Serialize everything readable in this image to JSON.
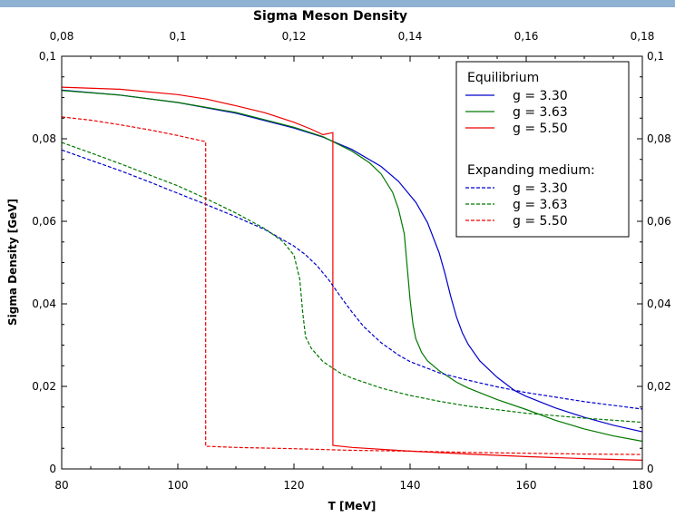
{
  "chart_data": {
    "type": "line",
    "title": "Sigma Meson Density",
    "xlabel": "T [MeV]",
    "ylabel": "Sigma Density [GeV]",
    "xlim": [
      80,
      180
    ],
    "ylim": [
      0,
      0.1
    ],
    "top_xlim": [
      0.08,
      0.18
    ],
    "x_ticks": [
      "80",
      "100",
      "120",
      "140",
      "160",
      "180"
    ],
    "top_ticks": [
      "0,08",
      "0,1",
      "0,12",
      "0,14",
      "0,16",
      "0,18"
    ],
    "y_ticks_left": [
      "0",
      "0,02",
      "0,04",
      "0,06",
      "0,08",
      "0,1"
    ],
    "y_ticks_right": [
      "0",
      "0,02",
      "0,04",
      "0,06",
      "0,08",
      "0,1"
    ],
    "legend": {
      "placement": "top-right",
      "group1": "Equilibrium",
      "group2": "Expanding medium:"
    },
    "series": [
      {
        "name": "g = 3.30",
        "group": "Equilibrium",
        "color": "#0000cc",
        "dash": false,
        "x": [
          80,
          90,
          100,
          110,
          120,
          125,
          130,
          135,
          138,
          141,
          143,
          145,
          146,
          147,
          148,
          149,
          150,
          152,
          155,
          158,
          160,
          165,
          170,
          175,
          180
        ],
        "y": [
          0.0918,
          0.0906,
          0.0888,
          0.0862,
          0.0826,
          0.0804,
          0.0774,
          0.0733,
          0.0697,
          0.0646,
          0.0597,
          0.0524,
          0.0474,
          0.0418,
          0.0368,
          0.033,
          0.0302,
          0.0262,
          0.0222,
          0.019,
          0.0176,
          0.0148,
          0.0125,
          0.0106,
          0.009
        ]
      },
      {
        "name": "g = 3.63",
        "group": "Equilibrium",
        "color": "#007700",
        "dash": false,
        "x": [
          80,
          90,
          100,
          110,
          120,
          125,
          130,
          133,
          135,
          137,
          138,
          139,
          139.5,
          140,
          140.5,
          141,
          142,
          143,
          145,
          148,
          150,
          155,
          160,
          165,
          170,
          175,
          180
        ],
        "y": [
          0.0917,
          0.0906,
          0.0888,
          0.0864,
          0.0828,
          0.0805,
          0.077,
          0.0742,
          0.0715,
          0.067,
          0.063,
          0.057,
          0.049,
          0.041,
          0.035,
          0.0315,
          0.0282,
          0.0262,
          0.0238,
          0.021,
          0.0196,
          0.0168,
          0.0144,
          0.0118,
          0.0097,
          0.008,
          0.0067
        ]
      },
      {
        "name": "g = 5.50",
        "group": "Equilibrium",
        "color": "#ee0000",
        "dash": false,
        "x": [
          80,
          90,
          100,
          105,
          110,
          115,
          120,
          123,
          125,
          126.7,
          126.7,
          130,
          140,
          150,
          160,
          170,
          180
        ],
        "y": [
          0.0925,
          0.092,
          0.0907,
          0.0896,
          0.088,
          0.0863,
          0.084,
          0.0823,
          0.081,
          0.0815,
          0.0057,
          0.0052,
          0.0043,
          0.0036,
          0.003,
          0.0025,
          0.0021
        ]
      },
      {
        "name": "g = 3.30",
        "group": "Expanding medium:",
        "color": "#0000cc",
        "dash": true,
        "x": [
          80,
          85,
          90,
          95,
          100,
          105,
          110,
          115,
          120,
          122,
          124,
          126,
          128,
          130,
          132,
          135,
          138,
          140,
          145,
          150,
          155,
          160,
          170,
          180
        ],
        "y": [
          0.0773,
          0.0748,
          0.0723,
          0.0696,
          0.0668,
          0.064,
          0.0611,
          0.058,
          0.054,
          0.0519,
          0.0492,
          0.0458,
          0.0418,
          0.038,
          0.0345,
          0.0306,
          0.0276,
          0.026,
          0.0233,
          0.0215,
          0.0199,
          0.0185,
          0.0163,
          0.0145
        ]
      },
      {
        "name": "g = 3.63",
        "group": "Expanding medium:",
        "color": "#007700",
        "dash": true,
        "x": [
          80,
          85,
          90,
          95,
          100,
          105,
          110,
          115,
          118,
          120,
          121,
          121.5,
          122,
          123,
          125,
          128,
          130,
          135,
          140,
          145,
          150,
          160,
          170,
          180
        ],
        "y": [
          0.0791,
          0.0766,
          0.074,
          0.0713,
          0.0686,
          0.0654,
          0.062,
          0.0582,
          0.0552,
          0.0518,
          0.046,
          0.038,
          0.032,
          0.0292,
          0.026,
          0.0232,
          0.022,
          0.0196,
          0.0178,
          0.0164,
          0.0152,
          0.0135,
          0.0123,
          0.0113
        ]
      },
      {
        "name": "g = 5.50",
        "group": "Expanding medium:",
        "color": "#ee0000",
        "dash": true,
        "x": [
          80,
          85,
          90,
          95,
          100,
          104.8,
          104.8,
          110,
          120,
          130,
          140,
          150,
          160,
          170,
          180
        ],
        "y": [
          0.0853,
          0.0845,
          0.0834,
          0.0822,
          0.0808,
          0.0793,
          0.0055,
          0.0052,
          0.0049,
          0.0045,
          0.0043,
          0.004,
          0.0038,
          0.0036,
          0.0035
        ]
      }
    ]
  }
}
